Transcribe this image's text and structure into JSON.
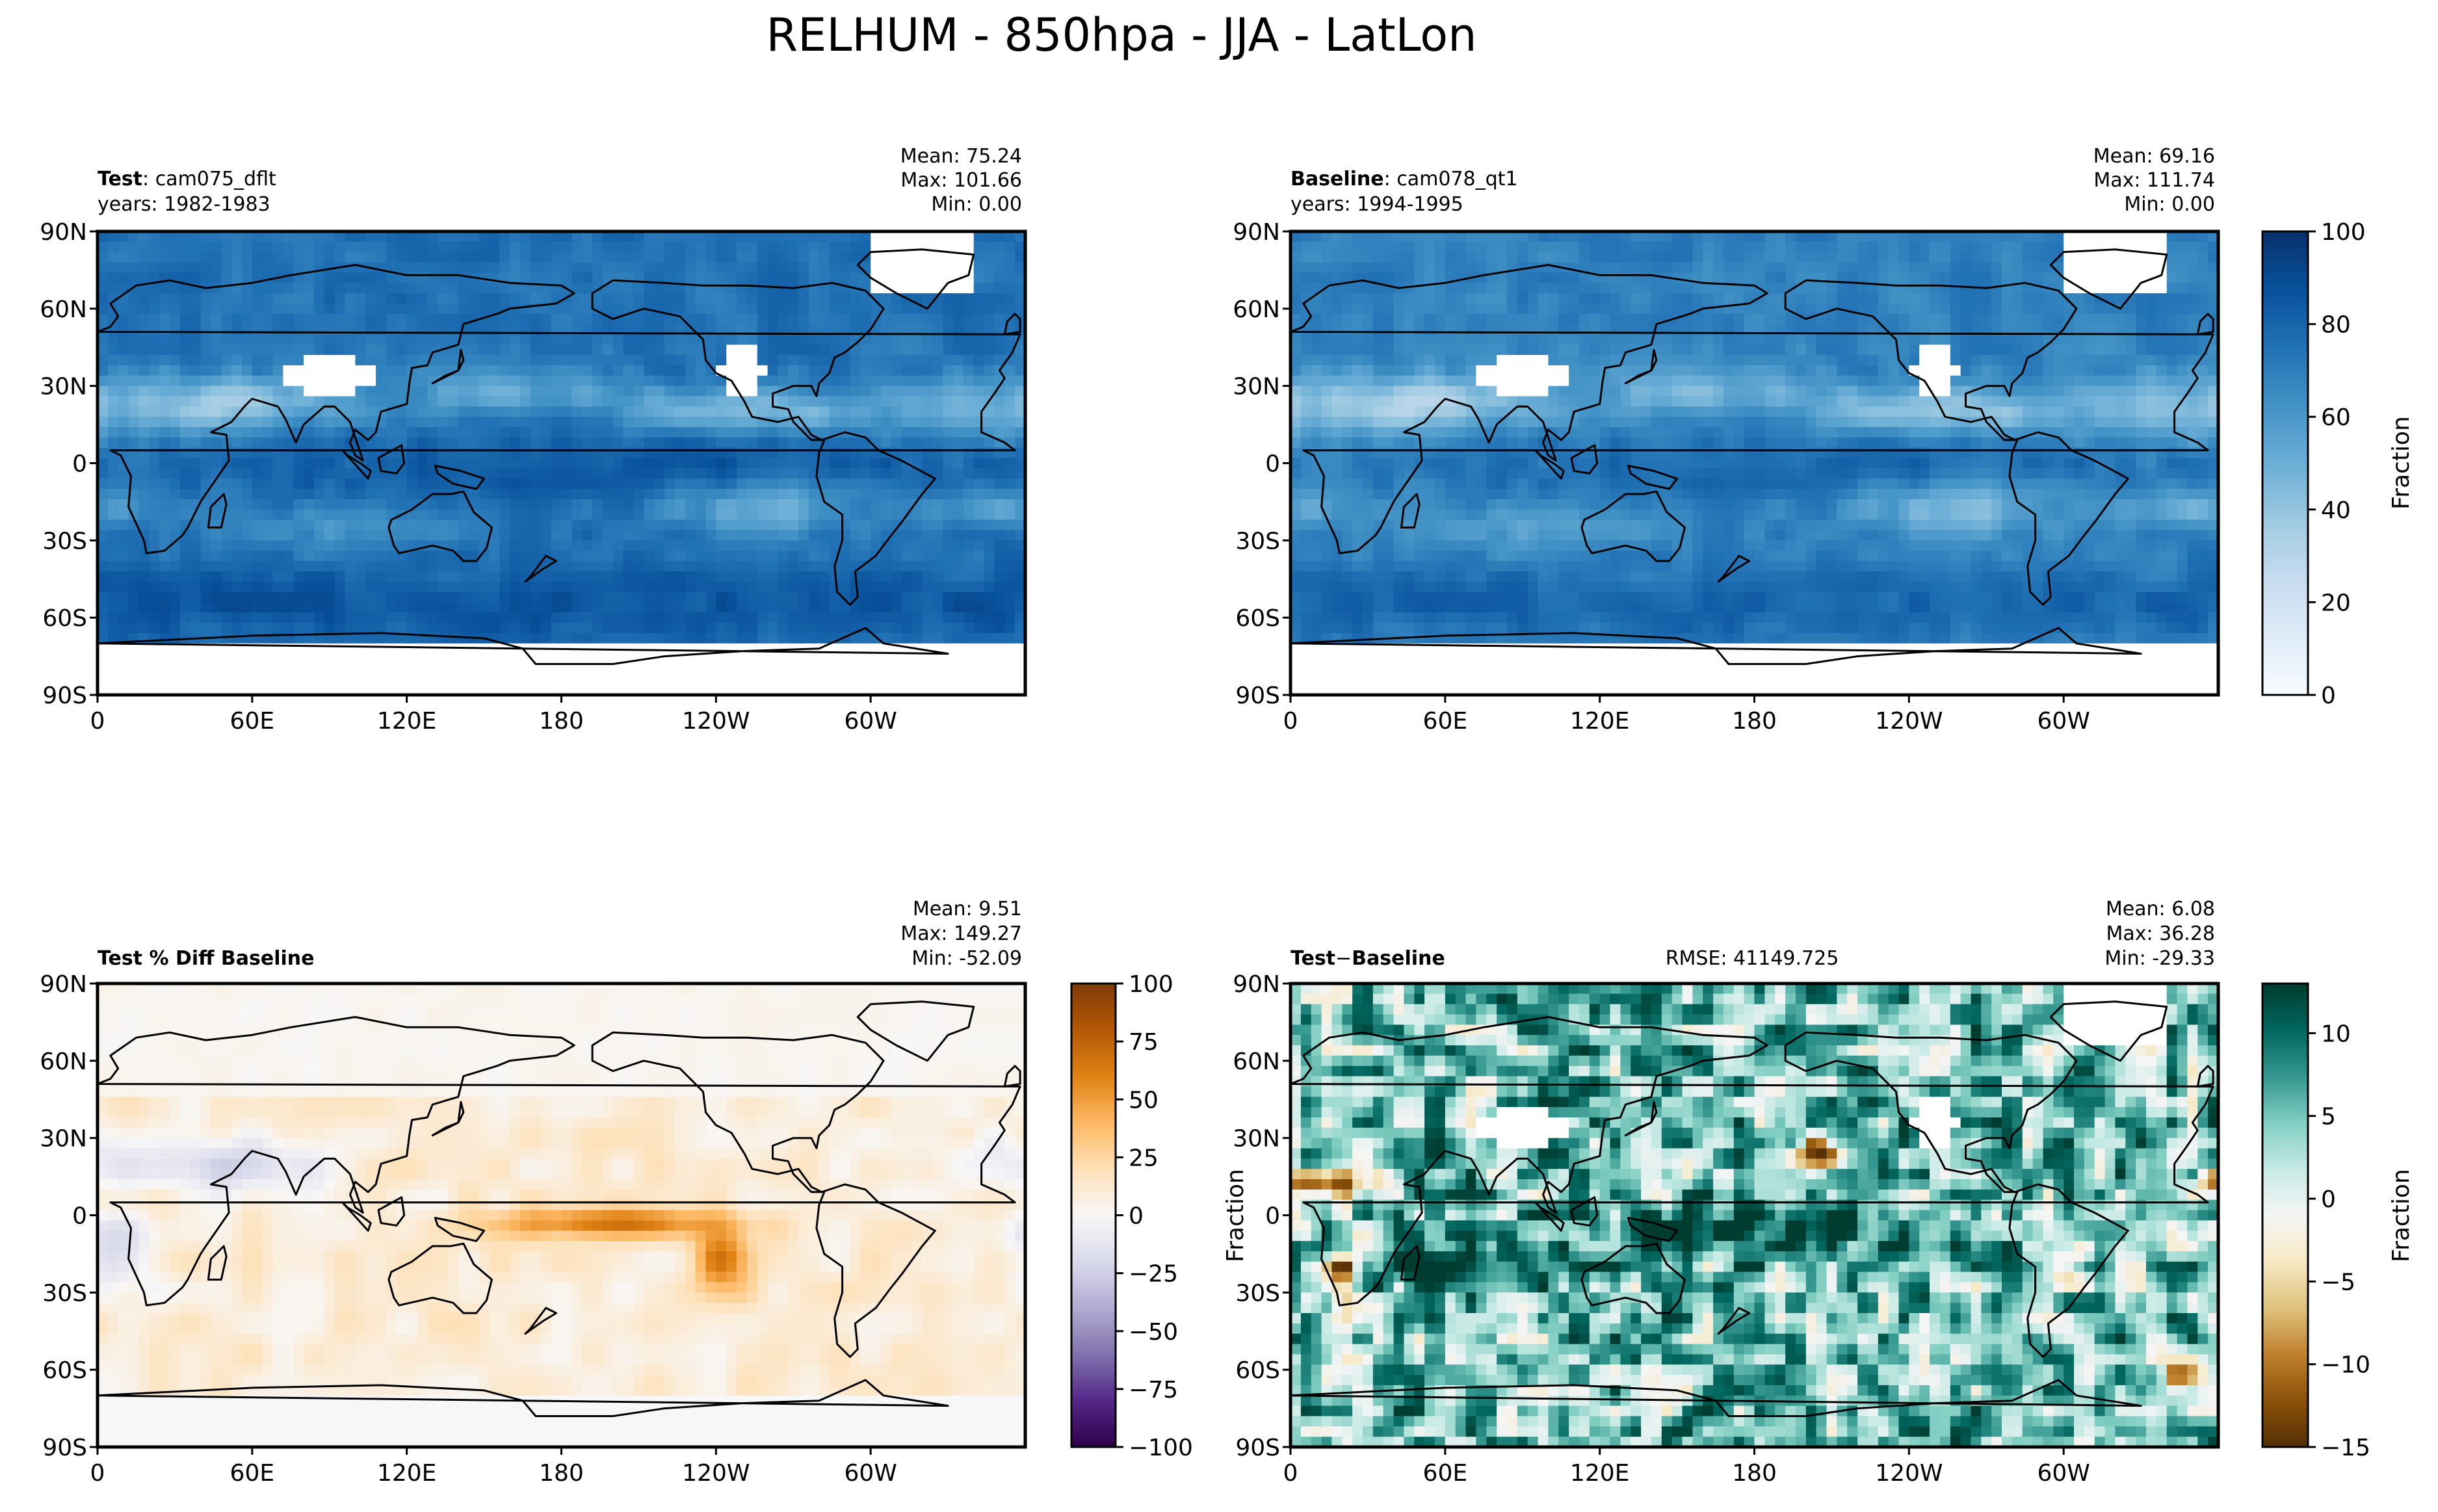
{
  "figure_title": "RELHUM - 850hpa - JJA - LatLon",
  "colors": {
    "blues": [
      "#f7fbff",
      "#deebf7",
      "#c6dbef",
      "#9ecae1",
      "#6baed6",
      "#4292c6",
      "#2171b5",
      "#08519c",
      "#08306b"
    ],
    "puor": [
      "#2d004b",
      "#542788",
      "#8073ac",
      "#b2abd2",
      "#d8daeb",
      "#f7f7f7",
      "#fee0b6",
      "#fdb863",
      "#e08214",
      "#b35806",
      "#7f3b08"
    ],
    "brbg": [
      "#543005",
      "#8c510a",
      "#bf812d",
      "#dfc27d",
      "#f6e8c3",
      "#f5f5f5",
      "#c7eae5",
      "#80cdc1",
      "#35978f",
      "#01665e",
      "#003c30"
    ],
    "coast": "#000000"
  },
  "chart_data": [
    {
      "id": "test",
      "type": "heatmap",
      "label_bold": "Test",
      "label_rest": "cam075_dflt",
      "years": "years: 1982-1983",
      "stats": [
        "Mean: 75.24",
        "Max: 101.66",
        "Min:  0.00"
      ],
      "x_ticks": [
        "0",
        "60E",
        "120E",
        "180",
        "120W",
        "60W"
      ],
      "y_ticks": [
        "90N",
        "60N",
        "30N",
        "0",
        "30S",
        "60S",
        "90S"
      ],
      "xlim": [
        0,
        360
      ],
      "ylim": [
        -90,
        90
      ],
      "colormap": "Blues",
      "field": "base",
      "offset": 3
    },
    {
      "id": "baseline",
      "type": "heatmap",
      "label_bold": "Baseline",
      "label_rest": "cam078_qt1",
      "years": "years: 1994-1995",
      "stats": [
        "Mean: 69.16",
        "Max: 111.74",
        "Min:  0.00"
      ],
      "x_ticks": [
        "0",
        "60E",
        "120E",
        "180",
        "120W",
        "60W"
      ],
      "y_ticks": [
        "90N",
        "60N",
        "30N",
        "0",
        "30S",
        "60S",
        "90S"
      ],
      "xlim": [
        0,
        360
      ],
      "ylim": [
        -90,
        90
      ],
      "colormap": "Blues",
      "field": "base",
      "offset": -3,
      "colorbar": {
        "ticks": [
          "100",
          "80",
          "60",
          "40",
          "20",
          "0"
        ],
        "label": "Fraction"
      }
    },
    {
      "id": "pctdiff",
      "type": "heatmap",
      "label_bold": "Test % Diff Baseline",
      "stats": [
        "Mean:  9.51",
        "Max: 149.27",
        "Min: -52.09"
      ],
      "x_ticks": [
        "0",
        "60E",
        "120E",
        "180",
        "120W",
        "60W"
      ],
      "y_ticks": [
        "90N",
        "60N",
        "30N",
        "0",
        "30S",
        "60S",
        "90S"
      ],
      "xlim": [
        0,
        360
      ],
      "ylim": [
        -90,
        90
      ],
      "colormap": "PuOr",
      "field": "pctdiff",
      "colorbar": {
        "ticks": [
          "100",
          "75",
          "50",
          "25",
          "0",
          "−25",
          "−50",
          "−75",
          "−100"
        ]
      }
    },
    {
      "id": "diff",
      "type": "heatmap",
      "label_bold": "Test",
      "label_minus": "−",
      "label_bold2": "Baseline",
      "rmse": "RMSE: 41149.725",
      "stats": [
        "Mean:  6.08",
        "Max: 36.28",
        "Min: -29.33"
      ],
      "x_ticks": [
        "0",
        "60E",
        "120E",
        "180",
        "120W",
        "60W"
      ],
      "y_ticks": [
        "90N",
        "60N",
        "30N",
        "0",
        "30S",
        "60S",
        "90S"
      ],
      "xlim": [
        0,
        360
      ],
      "ylim": [
        -90,
        90
      ],
      "colormap": "BrBG",
      "field": "diff",
      "left_label": "Fraction",
      "colorbar": {
        "ticks": [
          "10",
          "5",
          "0",
          "−5",
          "−10",
          "−15"
        ],
        "label": "Fraction"
      }
    }
  ]
}
